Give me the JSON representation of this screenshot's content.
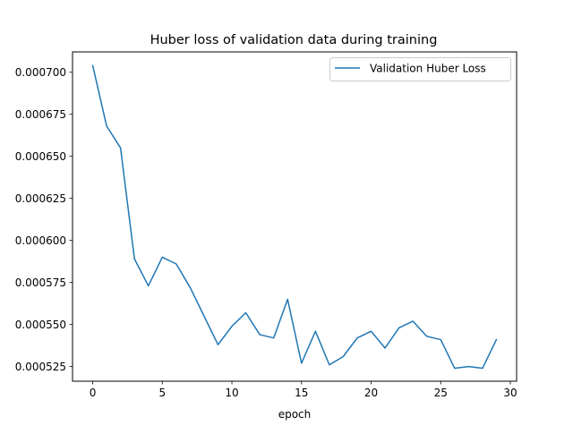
{
  "chart_data": {
    "type": "line",
    "title": "Huber loss of validation data during training",
    "xlabel": "epoch",
    "ylabel": "",
    "xlim": [
      -1.45,
      30.45
    ],
    "ylim": [
      0.0005163,
      0.0007121
    ],
    "xticks": [
      0,
      5,
      10,
      15,
      20,
      25,
      30
    ],
    "xtick_labels": [
      "0",
      "5",
      "10",
      "15",
      "20",
      "25",
      "30"
    ],
    "yticks": [
      0.000525,
      0.00055,
      0.000575,
      0.0006,
      0.000625,
      0.00065,
      0.000675,
      0.0007
    ],
    "ytick_labels": [
      "0.000525",
      "0.000550",
      "0.000575",
      "0.000600",
      "0.000625",
      "0.000650",
      "0.000675",
      "0.000700"
    ],
    "grid": false,
    "legend_position": "upper right",
    "series": [
      {
        "name": "Validation Huber Loss",
        "color": "#1f77b4",
        "x": [
          0,
          1,
          2,
          3,
          4,
          5,
          6,
          7,
          8,
          9,
          10,
          11,
          12,
          13,
          14,
          15,
          16,
          17,
          18,
          19,
          20,
          21,
          22,
          23,
          24,
          25,
          26,
          27,
          28,
          29
        ],
        "y": [
          0.000704,
          0.000668,
          0.000655,
          0.000589,
          0.000573,
          0.00059,
          0.000586,
          0.000572,
          0.000555,
          0.000538,
          0.000549,
          0.000557,
          0.000544,
          0.000542,
          0.000565,
          0.000527,
          0.000546,
          0.000526,
          0.000531,
          0.000542,
          0.000546,
          0.000536,
          0.000548,
          0.000552,
          0.000543,
          0.000541,
          0.000524,
          0.000525,
          0.000524,
          0.000541
        ]
      }
    ]
  }
}
